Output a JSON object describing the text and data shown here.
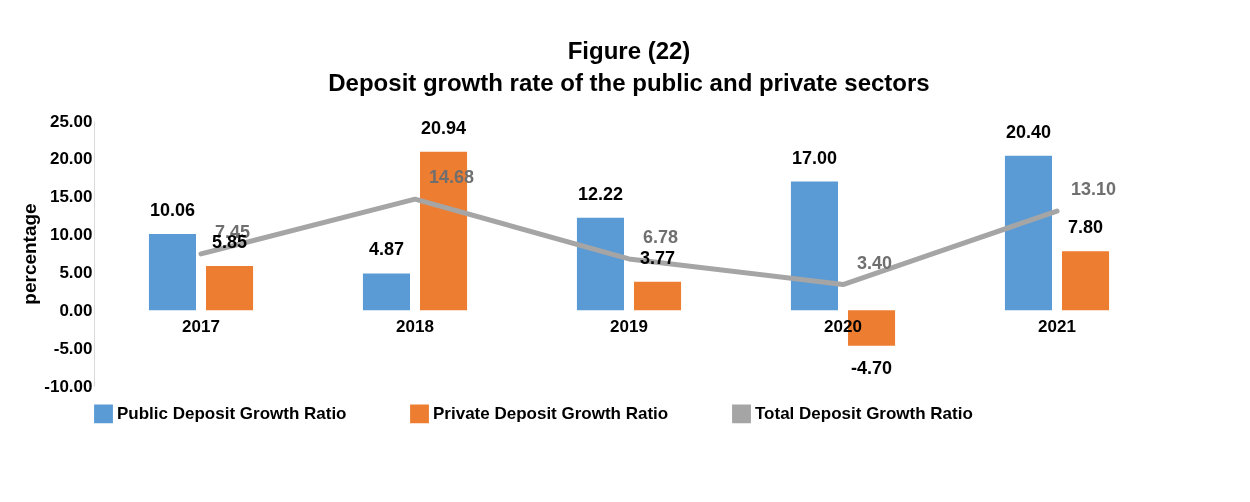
{
  "chart_data": {
    "type": "bar",
    "title": "Figure (22)",
    "subtitle": "Deposit growth rate of the public and private sectors",
    "ylabel": "percentage",
    "categories": [
      "2017",
      "2018",
      "2019",
      "2020",
      "2021"
    ],
    "series": [
      {
        "name": "Public Deposit Growth Ratio",
        "color": "#5b9bd5",
        "values": [
          10.06,
          4.87,
          12.22,
          17.0,
          20.4
        ],
        "value_labels": [
          "10.06",
          "4.87",
          "12.22",
          "17.00",
          "20.40"
        ]
      },
      {
        "name": "Private Deposit Growth Ratio",
        "color": "#ed7d31",
        "values": [
          5.85,
          20.94,
          3.77,
          -4.7,
          7.8
        ],
        "value_labels": [
          "5.85",
          "20.94",
          "3.77",
          "-4.70",
          "7.80"
        ]
      },
      {
        "name": "Total Deposit Growth Ratio",
        "type": "line",
        "color": "#a5a5a5",
        "values": [
          7.45,
          14.68,
          6.78,
          3.4,
          13.1
        ],
        "value_labels": [
          "7.45",
          "14.68",
          "6.78",
          "3.40",
          "13.10"
        ]
      }
    ],
    "ylim": [
      -10,
      25
    ],
    "yticks": [
      {
        "value": -10,
        "label": "-10.00"
      },
      {
        "value": -5,
        "label": "-5.00"
      },
      {
        "value": 0,
        "label": "0.00"
      },
      {
        "value": 5,
        "label": "5.00"
      },
      {
        "value": 10,
        "label": "10.00"
      },
      {
        "value": 15,
        "label": "15.00"
      },
      {
        "value": 20,
        "label": "20.00"
      },
      {
        "value": 25,
        "label": "25.00"
      }
    ],
    "grid": false,
    "legend": "bottom",
    "marker": "none",
    "line_style": "solid"
  }
}
